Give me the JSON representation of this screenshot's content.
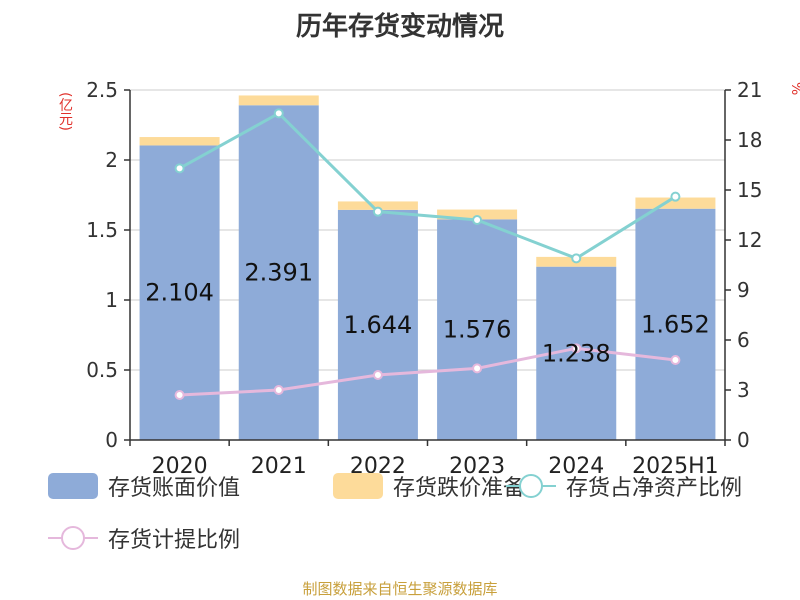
{
  "title": "历年存货变动情况",
  "source": "制图数据来自恒生聚源数据库",
  "axis_left_label": "(亿元)",
  "axis_right_label": "%",
  "colors": {
    "book": "#8eabd8",
    "reserve": "#fddb9a",
    "ratio_net": "#84d1d1",
    "ratio_reserve": "#e5b8dc"
  },
  "legend": [
    {
      "label": "存货账面价值",
      "kind": "bar",
      "key": "book"
    },
    {
      "label": "存货跌价准备",
      "kind": "bar",
      "key": "reserve"
    },
    {
      "label": "存货占净资产比例",
      "kind": "line",
      "key": "ratio_net"
    },
    {
      "label": "存货计提比例",
      "kind": "line",
      "key": "ratio_reserve"
    }
  ],
  "chart_data": {
    "type": "bar",
    "categories": [
      "2020",
      "2021",
      "2022",
      "2023",
      "2024",
      "2025H1"
    ],
    "series": [
      {
        "name": "存货账面价值",
        "type": "bar",
        "axis": "left",
        "values": [
          2.104,
          2.391,
          1.644,
          1.576,
          1.238,
          1.652
        ],
        "labels": [
          "2.104",
          "2.391",
          "1.644",
          "1.576",
          "1.238",
          "1.652"
        ]
      },
      {
        "name": "存货跌价准备",
        "type": "bar",
        "axis": "left",
        "stacked": true,
        "values": [
          0.06,
          0.07,
          0.06,
          0.07,
          0.07,
          0.08
        ]
      },
      {
        "name": "存货占净资产比例",
        "type": "line",
        "axis": "right",
        "values": [
          16.3,
          19.6,
          13.7,
          13.2,
          10.9,
          14.6
        ]
      },
      {
        "name": "存货计提比例",
        "type": "line",
        "axis": "right",
        "values": [
          2.7,
          3.0,
          3.9,
          4.3,
          5.5,
          4.8
        ]
      }
    ],
    "y_left": {
      "min": 0,
      "max": 2.5,
      "ticks": [
        "0",
        "0.5",
        "1",
        "1.5",
        "2",
        "2.5"
      ],
      "label": "(亿元)"
    },
    "y_right": {
      "min": 0,
      "max": 21,
      "ticks": [
        "0",
        "3",
        "6",
        "9",
        "12",
        "15",
        "18",
        "21"
      ],
      "label": "%"
    },
    "grid": true,
    "legend_position": "bottom"
  }
}
